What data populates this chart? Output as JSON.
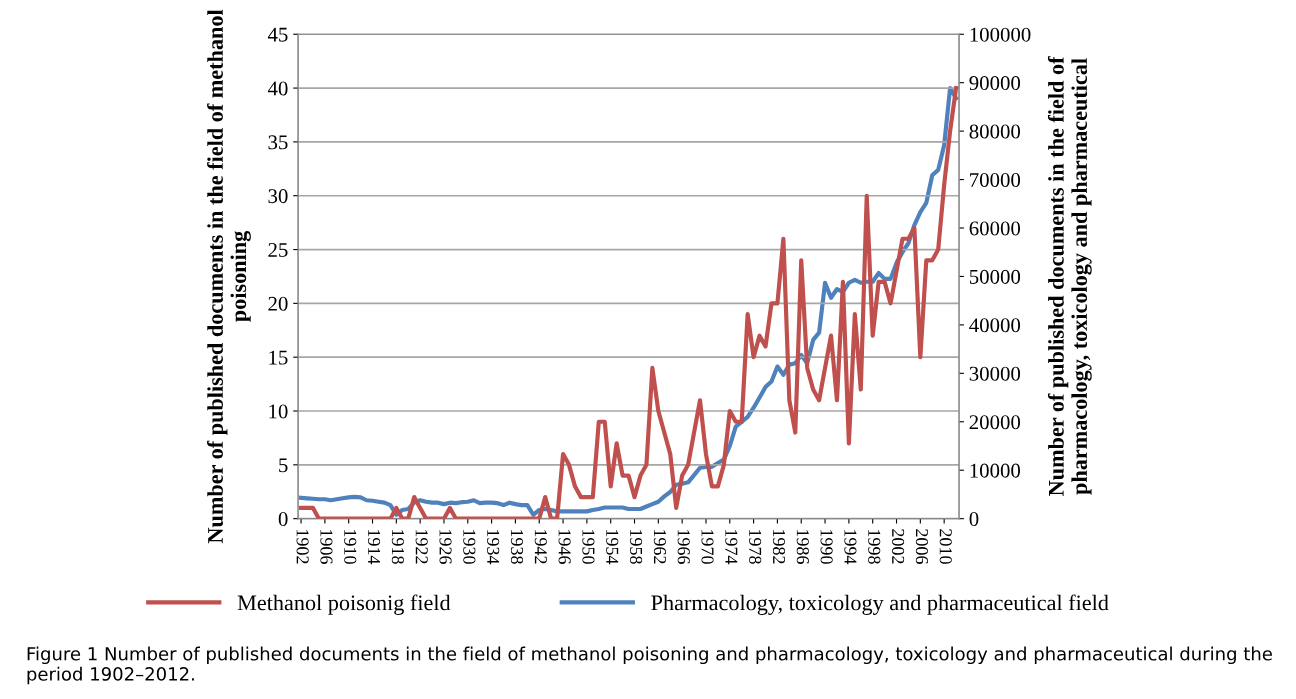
{
  "chart_data": {
    "type": "line",
    "x": [
      1902,
      1903,
      1904,
      1905,
      1906,
      1907,
      1908,
      1909,
      1910,
      1911,
      1912,
      1913,
      1914,
      1915,
      1916,
      1917,
      1918,
      1919,
      1920,
      1921,
      1922,
      1923,
      1924,
      1925,
      1926,
      1927,
      1928,
      1929,
      1930,
      1931,
      1932,
      1933,
      1934,
      1935,
      1936,
      1937,
      1938,
      1939,
      1940,
      1941,
      1942,
      1943,
      1944,
      1945,
      1946,
      1947,
      1948,
      1949,
      1950,
      1951,
      1952,
      1953,
      1954,
      1955,
      1956,
      1957,
      1958,
      1959,
      1960,
      1961,
      1962,
      1963,
      1964,
      1965,
      1966,
      1967,
      1968,
      1969,
      1970,
      1971,
      1972,
      1973,
      1974,
      1975,
      1976,
      1977,
      1978,
      1979,
      1980,
      1981,
      1982,
      1983,
      1984,
      1985,
      1986,
      1987,
      1988,
      1989,
      1990,
      1991,
      1992,
      1993,
      1994,
      1995,
      1996,
      1997,
      1998,
      1999,
      2000,
      2001,
      2002,
      2003,
      2004,
      2005,
      2006,
      2007,
      2008,
      2009,
      2010,
      2011,
      2012
    ],
    "series": [
      {
        "name": "Methanol poisonig field",
        "color": "#c0504d",
        "values": [
          1,
          1,
          1,
          0,
          0,
          0,
          0,
          0,
          0,
          0,
          0,
          0,
          0,
          0,
          0,
          0,
          1,
          0,
          0,
          2,
          1,
          0,
          0,
          0,
          0,
          1,
          0,
          0,
          0,
          0,
          0,
          0,
          0,
          0,
          0,
          0,
          0,
          0,
          0,
          0,
          0,
          2,
          0,
          0,
          6,
          5,
          3,
          2,
          2,
          2,
          9,
          9,
          3,
          7,
          4,
          4,
          2,
          4,
          5,
          14,
          10,
          8,
          6,
          1,
          4,
          5,
          8,
          11,
          6,
          3,
          3,
          5,
          10,
          9,
          9,
          19,
          15,
          17,
          16,
          20,
          20,
          26,
          11,
          8,
          24,
          14,
          12,
          11,
          14,
          17,
          11,
          22,
          7,
          19,
          12,
          30,
          17,
          22,
          22,
          20,
          23,
          26,
          26,
          27,
          15,
          24,
          24,
          25,
          31,
          36,
          40
        ]
      },
      {
        "name": "Pharmacology, toxicology and pharmaceutical field",
        "color": "#4f81bd",
        "axis": "y2",
        "values": [
          4300,
          4200,
          4100,
          4000,
          4000,
          3800,
          4000,
          4200,
          4400,
          4500,
          4400,
          3800,
          3700,
          3500,
          3300,
          2800,
          800,
          1800,
          2000,
          3300,
          3800,
          3500,
          3300,
          3300,
          3000,
          3300,
          3200,
          3400,
          3500,
          3800,
          3200,
          3300,
          3300,
          3200,
          2800,
          3300,
          3000,
          2800,
          2800,
          800,
          1800,
          2000,
          1800,
          1500,
          1500,
          1500,
          1500,
          1500,
          1500,
          1800,
          2000,
          2300,
          2300,
          2300,
          2300,
          2000,
          2000,
          2000,
          2500,
          3000,
          3500,
          4600,
          5500,
          7000,
          7200,
          7500,
          9000,
          10500,
          10700,
          10700,
          11500,
          12200,
          15000,
          19000,
          20000,
          21000,
          22900,
          25000,
          27200,
          28300,
          31400,
          29700,
          31800,
          32100,
          33800,
          32100,
          36900,
          38400,
          48700,
          45600,
          47400,
          46800,
          48700,
          49300,
          48700,
          48900,
          48900,
          50700,
          49500,
          49500,
          52800,
          55000,
          56900,
          60600,
          63300,
          65200,
          70900,
          72000,
          77100,
          88900,
          86800
        ]
      }
    ],
    "ylabel": "Number of published documents in the field of methanol poisoning",
    "y2label": "Number of published documents in the field of pharmacology, toxicology and pharmaceutical",
    "xlim": [
      1901.5,
      2012.5
    ],
    "xticks": [
      1902,
      1906,
      1910,
      1914,
      1918,
      1922,
      1926,
      1930,
      1934,
      1938,
      1942,
      1946,
      1950,
      1954,
      1958,
      1962,
      1966,
      1970,
      1974,
      1978,
      1982,
      1986,
      1990,
      1994,
      1998,
      2002,
      2006,
      2010
    ],
    "ylim": [
      0,
      45
    ],
    "yticks": [
      0,
      5,
      10,
      15,
      20,
      25,
      30,
      35,
      40,
      45
    ],
    "y2lim": [
      0,
      100000
    ],
    "y2ticks": [
      0,
      10000,
      20000,
      30000,
      40000,
      50000,
      60000,
      70000,
      80000,
      90000,
      100000
    ],
    "grid": "y",
    "legend": "bottom",
    "marker": "none",
    "line_style": "solid",
    "annotations": [
      "Figure 1 Number of published documents in the field of methanol poisoning and pharmacology, toxicology and pharmaceutical during the period 1902–2012."
    ]
  }
}
